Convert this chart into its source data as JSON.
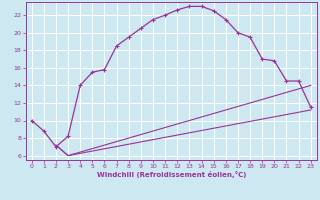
{
  "xlabel": "Windchill (Refroidissement éolien,°C)",
  "bg_color": "#cde8f0",
  "grid_color": "#ffffff",
  "line_color": "#993399",
  "xlim": [
    -0.5,
    23.5
  ],
  "ylim": [
    5.5,
    23.5
  ],
  "xticks": [
    0,
    1,
    2,
    3,
    4,
    5,
    6,
    7,
    8,
    9,
    10,
    11,
    12,
    13,
    14,
    15,
    16,
    17,
    18,
    19,
    20,
    21,
    22,
    23
  ],
  "yticks": [
    6,
    8,
    10,
    12,
    14,
    16,
    18,
    20,
    22
  ],
  "curve1_x": [
    0,
    1,
    2,
    3,
    4,
    5,
    6,
    7,
    8,
    9,
    10,
    11,
    12,
    13,
    14,
    15,
    16,
    17,
    18,
    19,
    20,
    21,
    22,
    23
  ],
  "curve1_y": [
    10,
    8.8,
    7.0,
    8.2,
    14,
    15.5,
    15.8,
    18.5,
    19.5,
    20.5,
    21.5,
    22.0,
    22.6,
    23.0,
    23.0,
    22.5,
    21.5,
    20.0,
    19.5,
    17.0,
    16.8,
    14.5,
    14.5,
    11.5
  ],
  "curve2_x": [
    2,
    3,
    23
  ],
  "curve2_y": [
    7.2,
    6.0,
    14.0
  ],
  "curve3_x": [
    2,
    3,
    23
  ],
  "curve3_y": [
    7.2,
    6.0,
    11.2
  ]
}
